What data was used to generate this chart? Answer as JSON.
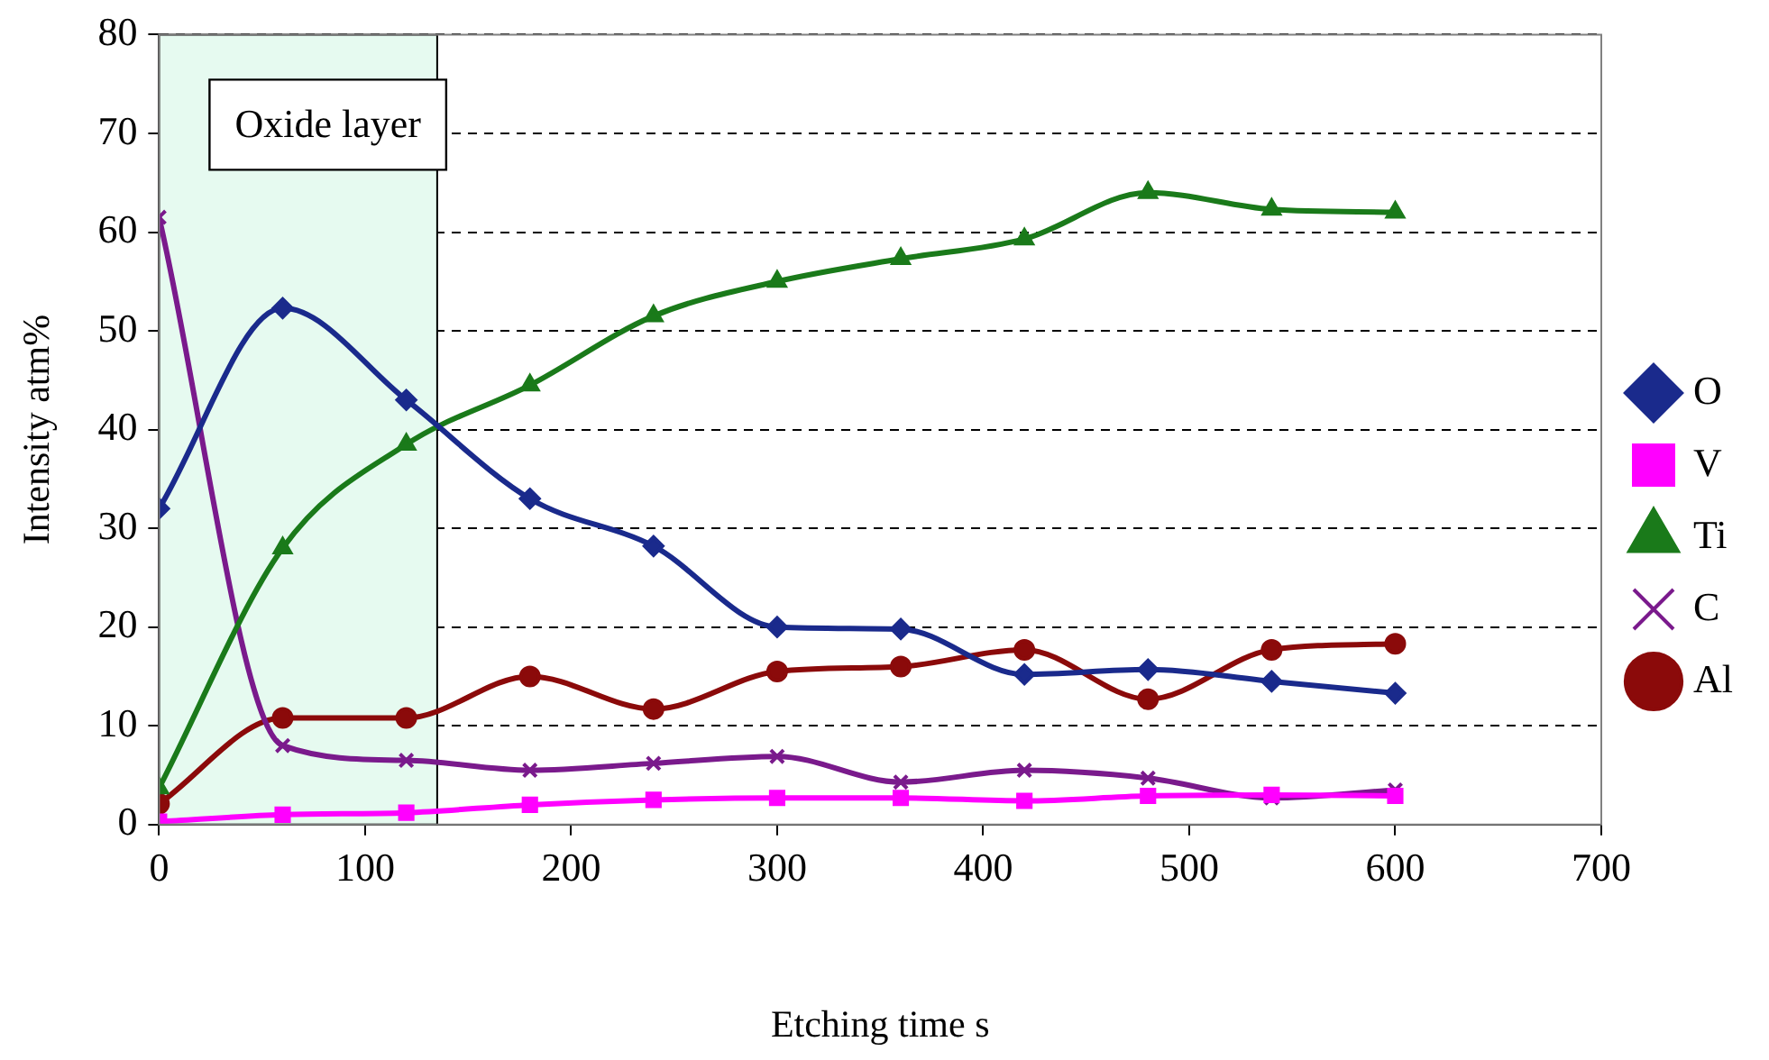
{
  "chart_data": {
    "type": "line",
    "xlabel": "Etching time s",
    "ylabel": "Intensity atm%",
    "x": [
      0,
      60,
      120,
      180,
      240,
      300,
      360,
      420,
      480,
      540,
      600
    ],
    "series": [
      {
        "name": "O",
        "color": "#1a2a8c",
        "marker": "diamond",
        "values": [
          32,
          52.3,
          43,
          33,
          28.2,
          20,
          19.8,
          15.2,
          15.7,
          14.5,
          13.3
        ]
      },
      {
        "name": "V",
        "color": "#ff00ff",
        "marker": "square",
        "values": [
          0.3,
          1.0,
          1.2,
          2.0,
          2.5,
          2.7,
          2.7,
          2.4,
          2.9,
          3.0,
          2.9
        ]
      },
      {
        "name": "Ti",
        "color": "#1a7a1a",
        "marker": "triangle",
        "values": [
          3.7,
          28,
          38.5,
          44.5,
          51.5,
          55,
          57.3,
          59.3,
          64,
          62.3,
          62
        ]
      },
      {
        "name": "C",
        "color": "#7a1a8c",
        "marker": "cross",
        "values": [
          61.5,
          8,
          6.5,
          5.5,
          6.2,
          6.9,
          4.3,
          5.5,
          4.7,
          2.7,
          3.5
        ]
      },
      {
        "name": "Al",
        "color": "#8b0a0a",
        "marker": "circle",
        "values": [
          2.1,
          10.8,
          10.8,
          15,
          11.7,
          15.5,
          16,
          17.7,
          12.7,
          17.7,
          18.3
        ]
      }
    ],
    "xlim": [
      0,
      700
    ],
    "xticks": [
      0,
      100,
      200,
      300,
      400,
      500,
      600,
      700
    ],
    "ylim": [
      0,
      80
    ],
    "yticks": [
      0,
      10,
      20,
      30,
      40,
      50,
      60,
      70,
      80
    ],
    "grid": "y",
    "legend": "right",
    "line_style": "solid",
    "bands": [
      {
        "axis": "x",
        "from": 0,
        "to": 135,
        "label": "Oxide layer",
        "color": "#e6faf0"
      }
    ]
  }
}
